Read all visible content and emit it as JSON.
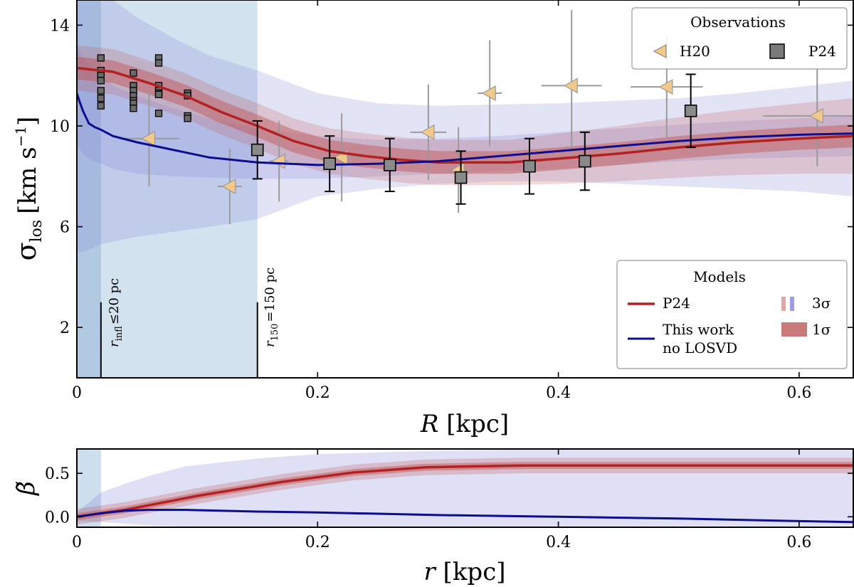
{
  "figure": {
    "top_panel": {
      "ylabel_main": "σ",
      "ylabel_sub": "los",
      "ylabel_unit": "[km s",
      "ylabel_exp": "−1",
      "ylabel_close": "]",
      "xlabel_var": "R",
      "xlabel_unit": " [kpc]"
    },
    "bottom_panel": {
      "ylabel": "β̃",
      "xlabel_var": "r",
      "xlabel_unit": " [kpc]"
    },
    "annotations": {
      "r_infl": {
        "var": "r",
        "sub": "infl",
        "rel": "≤20 pc",
        "x_kpc": 0.02
      },
      "r_150": {
        "var": "r",
        "sub": "150",
        "rel": "=150 pc",
        "x_kpc": 0.15
      }
    },
    "legend_observations": {
      "title": "Observations",
      "entries": [
        {
          "label": "H20",
          "marker": "triangle-left"
        },
        {
          "label": "P24",
          "marker": "square"
        }
      ]
    },
    "legend_models": {
      "title": "Models",
      "entries": [
        {
          "label": "P24",
          "kind": "line"
        },
        {
          "label": "This work",
          "kind": "line"
        },
        {
          "label": "no LOSVD",
          "kind": "text"
        },
        {
          "label": "3σ",
          "kind": "band"
        },
        {
          "label": "1σ",
          "kind": "band"
        }
      ]
    },
    "colors": {
      "p24_line": "#b22222",
      "this_work_line": "#0d0d8f",
      "band_red": "#c0504d",
      "band_blue": "#7f7fd6",
      "shade_region": "#bcd3e6",
      "shade_inner": "#8fb0d3",
      "h20_marker": "#f3c98b",
      "p24_marker": "#7a7a7a"
    }
  },
  "chart_data": [
    {
      "type": "line",
      "title": "",
      "xlabel": "R [kpc]",
      "ylabel": "σlos [km s−1]",
      "xlim": [
        0,
        0.645
      ],
      "ylim": [
        0,
        15
      ],
      "xticks": [
        0,
        0.2,
        0.4,
        0.6
      ],
      "yticks": [
        2,
        6,
        10,
        14
      ],
      "grid": false,
      "legend_placement": [
        "top-right",
        "bottom-right"
      ],
      "shaded_regions": [
        {
          "x": [
            0,
            0.02
          ],
          "label": "r_infl ≤20 pc"
        },
        {
          "x": [
            0,
            0.15
          ],
          "label": "r_150 =150 pc"
        }
      ],
      "series": [
        {
          "name": "P24",
          "x": [
            0,
            0.03,
            0.06,
            0.09,
            0.12,
            0.15,
            0.18,
            0.21,
            0.24,
            0.27,
            0.3,
            0.33,
            0.36,
            0.4,
            0.45,
            0.5,
            0.55,
            0.6,
            0.645
          ],
          "y": [
            12.3,
            12.15,
            11.7,
            11.2,
            10.55,
            10.0,
            9.4,
            9.0,
            8.8,
            8.65,
            8.55,
            8.55,
            8.55,
            8.7,
            8.9,
            9.15,
            9.35,
            9.5,
            9.6
          ],
          "band_1sigma_half_width": [
            0.45,
            0.45,
            0.45,
            0.45,
            0.45,
            0.45,
            0.45,
            0.45,
            0.45,
            0.45,
            0.45,
            0.45,
            0.45,
            0.45,
            0.45,
            0.45,
            0.45,
            0.45,
            0.45
          ],
          "band_3sigma_half_width": [
            0.9,
            0.9,
            0.9,
            0.9,
            0.9,
            0.9,
            0.9,
            0.9,
            0.9,
            0.9,
            0.9,
            0.9,
            0.9,
            1.0,
            1.1,
            1.2,
            1.3,
            1.4,
            1.5
          ]
        },
        {
          "name": "This work no LOSVD",
          "x": [
            0,
            0.002,
            0.005,
            0.01,
            0.015,
            0.02,
            0.03,
            0.05,
            0.08,
            0.11,
            0.15,
            0.2,
            0.25,
            0.3,
            0.35,
            0.4,
            0.45,
            0.5,
            0.55,
            0.6,
            0.645
          ],
          "y": [
            11.3,
            11.0,
            10.6,
            10.1,
            9.95,
            9.85,
            9.6,
            9.35,
            9.05,
            8.75,
            8.55,
            8.45,
            8.5,
            8.6,
            8.8,
            9.0,
            9.2,
            9.4,
            9.55,
            9.65,
            9.7
          ],
          "band_3sigma_lower": [
            5.0,
            5.0,
            5.0,
            5.1,
            5.2,
            5.3,
            5.4,
            5.6,
            5.8,
            6.0,
            6.3,
            7.2,
            7.5,
            7.7,
            7.8,
            7.8,
            7.7,
            7.6,
            7.5,
            7.4,
            7.2
          ],
          "band_3sigma_upper": [
            15.5,
            15.5,
            15.5,
            15.5,
            15.4,
            15.3,
            15.0,
            14.3,
            13.5,
            12.8,
            12.2,
            11.3,
            10.9,
            10.8,
            10.85,
            10.9,
            11.0,
            11.1,
            11.3,
            11.55,
            11.8
          ],
          "band_1sigma_lower": [
            9.3,
            9.1,
            8.9,
            8.7,
            8.6,
            8.5,
            8.3,
            8.1,
            8.0,
            7.95,
            7.9,
            7.9,
            8.0,
            8.1,
            8.2,
            8.3,
            8.45,
            8.6,
            8.7,
            8.75,
            8.8
          ],
          "band_1sigma_upper": [
            13.3,
            13.0,
            12.7,
            12.4,
            12.2,
            12.0,
            11.6,
            11.2,
            10.7,
            10.3,
            9.9,
            9.6,
            9.45,
            9.5,
            9.6,
            9.75,
            9.9,
            10.05,
            10.2,
            10.3,
            10.4
          ]
        },
        {
          "name": "H20",
          "marker": "triangle-left",
          "x": [
            0.06,
            0.127,
            0.168,
            0.22,
            0.292,
            0.317,
            0.343,
            0.411,
            0.49,
            0.615
          ],
          "y": [
            9.5,
            7.6,
            8.6,
            8.75,
            9.75,
            8.25,
            11.3,
            11.6,
            11.55,
            10.4
          ],
          "xerr": [
            0.025,
            0.01,
            0.008,
            0.018,
            0.015,
            0.01,
            0.01,
            0.025,
            0.03,
            0.045
          ],
          "yerr": [
            1.9,
            1.5,
            1.6,
            1.75,
            1.9,
            1.7,
            2.1,
            3.0,
            2.0,
            2.0
          ]
        },
        {
          "name": "P24",
          "marker": "square",
          "x": [
            0.15,
            0.21,
            0.26,
            0.319,
            0.376,
            0.422,
            0.51
          ],
          "y": [
            9.05,
            8.5,
            8.45,
            7.95,
            8.4,
            8.6,
            10.6
          ],
          "yerr": [
            1.15,
            1.1,
            1.05,
            1.05,
            1.1,
            1.15,
            1.45
          ]
        },
        {
          "name": "P24 inner (small markers)",
          "marker": "square",
          "x": [
            0.02,
            0.02,
            0.02,
            0.02,
            0.02,
            0.02,
            0.02,
            0.047,
            0.047,
            0.047,
            0.047,
            0.047,
            0.047,
            0.047,
            0.068,
            0.068,
            0.068,
            0.068,
            0.068,
            0.068,
            0.068,
            0.092,
            0.092,
            0.092,
            0.092
          ],
          "y": [
            12.7,
            12.2,
            12.0,
            11.8,
            11.4,
            11.1,
            10.8,
            12.1,
            11.6,
            11.4,
            11.2,
            11.0,
            10.9,
            10.7,
            12.7,
            12.5,
            11.6,
            11.4,
            11.3,
            11.25,
            10.5,
            11.3,
            11.2,
            10.4,
            10.3
          ]
        }
      ]
    },
    {
      "type": "line",
      "title": "",
      "xlabel": "r [kpc]",
      "ylabel": "β̃",
      "xlim": [
        0,
        0.645
      ],
      "ylim": [
        -0.12,
        0.78
      ],
      "xticks": [
        0,
        0.2,
        0.4,
        0.6
      ],
      "yticks": [
        0.0,
        0.5
      ],
      "grid": false,
      "shaded_regions": [
        {
          "x": [
            0,
            0.02
          ]
        }
      ],
      "series": [
        {
          "name": "P24",
          "x": [
            0,
            0.04,
            0.1,
            0.17,
            0.23,
            0.29,
            0.37,
            0.45,
            0.55,
            0.645
          ],
          "y": [
            0.0,
            0.08,
            0.24,
            0.4,
            0.51,
            0.57,
            0.59,
            0.59,
            0.59,
            0.59
          ],
          "band_1sigma_half_width": 0.04,
          "band_3sigma_half_width": 0.09
        },
        {
          "name": "This work no LOSVD",
          "x": [
            0,
            0.02,
            0.04,
            0.06,
            0.09,
            0.15,
            0.2,
            0.3,
            0.4,
            0.5,
            0.6,
            0.645
          ],
          "y": [
            0.0,
            0.04,
            0.07,
            0.08,
            0.08,
            0.06,
            0.05,
            0.02,
            0.0,
            -0.02,
            -0.05,
            -0.06
          ],
          "band_lower": [
            -0.05,
            -0.06,
            -0.08,
            -0.1,
            -0.11,
            -0.11,
            -0.11,
            -0.11,
            -0.11,
            -0.11,
            -0.11,
            -0.11
          ],
          "band_upper": [
            0.05,
            0.28,
            0.38,
            0.47,
            0.58,
            0.67,
            0.72,
            0.76,
            0.78,
            0.78,
            0.78,
            0.78
          ]
        }
      ]
    }
  ]
}
